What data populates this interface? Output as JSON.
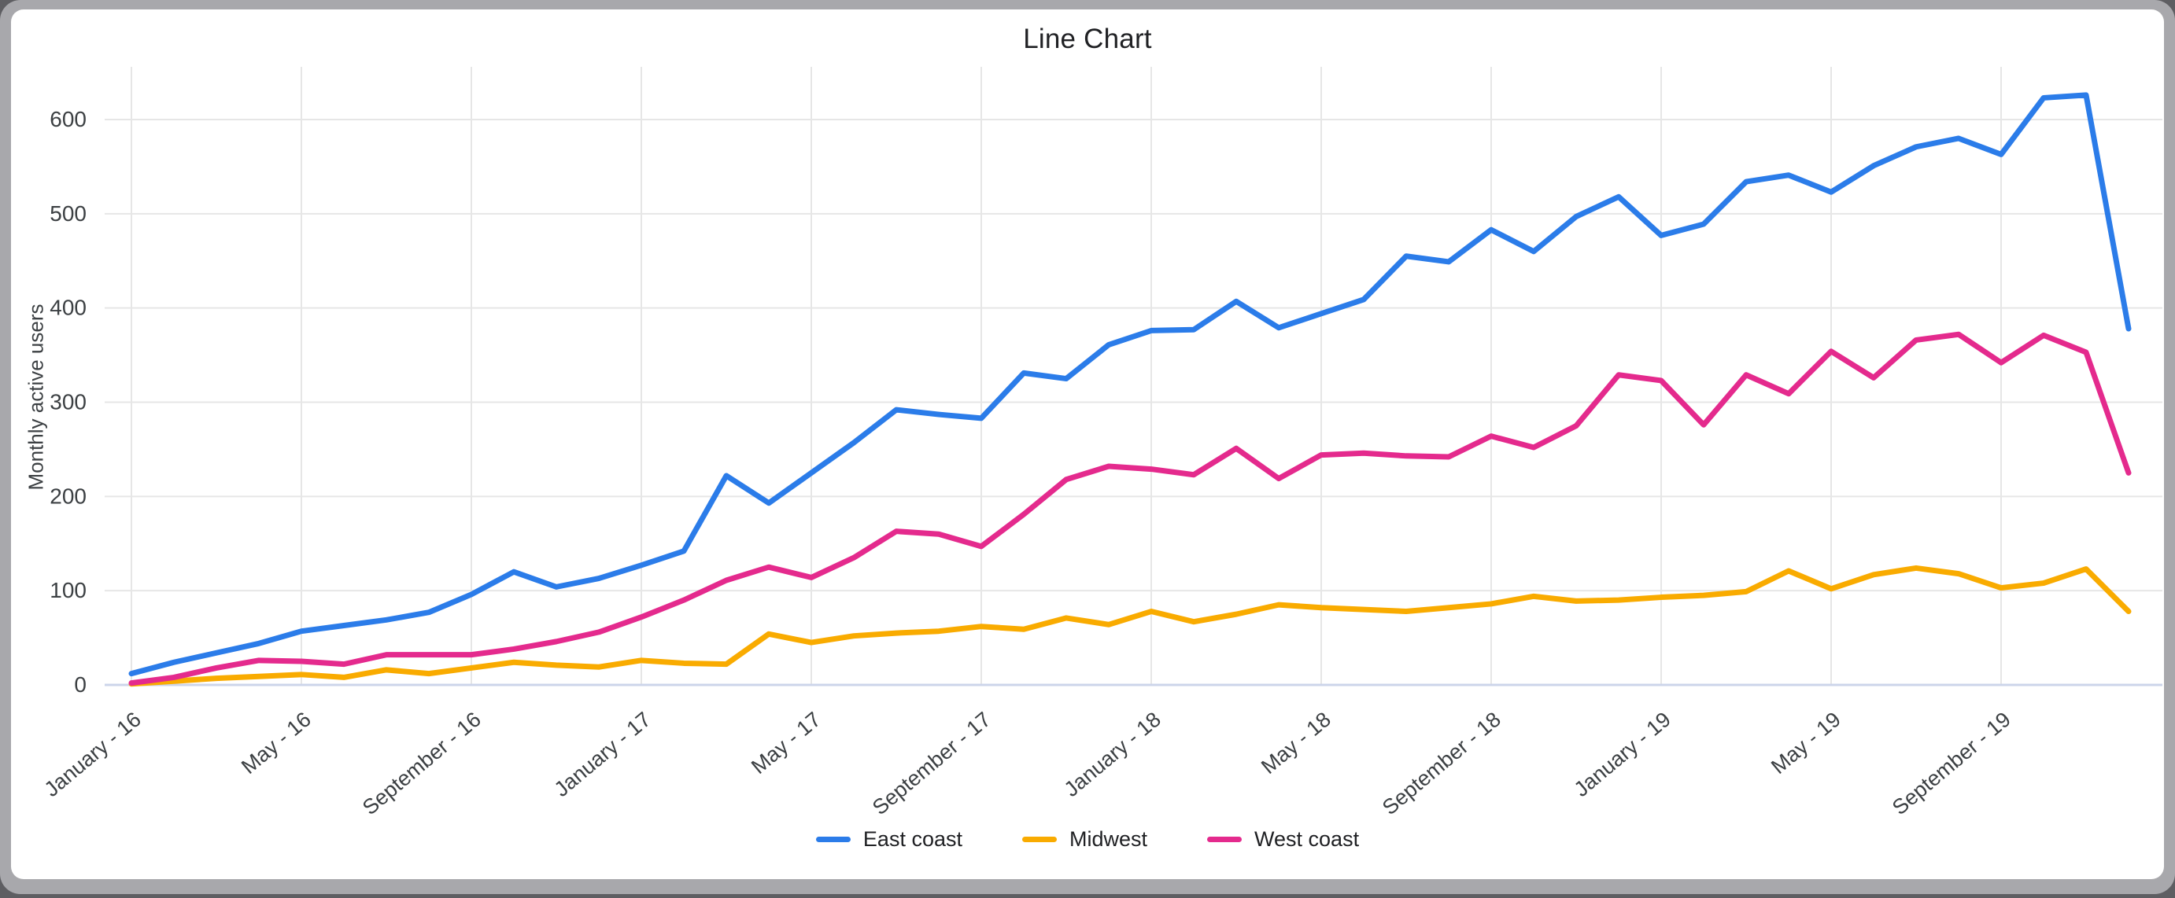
{
  "title": "Line Chart",
  "colors": {
    "frame_border": "#a8a8ac",
    "frame_outer": "#5e5e62",
    "card_bg": "#ffffff",
    "title_text": "#202124",
    "tick_text": "#3c4043",
    "gridline": "#e6e6e6",
    "zero_axis": "#ccd5ea",
    "legend_text": "#202124"
  },
  "chart_data": {
    "type": "line",
    "title": "Line Chart",
    "xlabel": "",
    "ylabel": "Monthly active users",
    "grid": true,
    "legend_position": "bottom",
    "ylim": [
      0,
      650
    ],
    "y_ticks": [
      0,
      100,
      200,
      300,
      400,
      500,
      600
    ],
    "x_range": {
      "start": "January 2016",
      "end": "December 2019",
      "interval": "monthly",
      "points": 48
    },
    "x_tick_months": [
      0,
      4,
      8,
      12,
      16,
      20,
      24,
      28,
      32,
      36,
      40,
      44
    ],
    "x_tick_labels": [
      "January - 16",
      "May - 16",
      "September - 16",
      "January - 17",
      "May - 17",
      "September - 17",
      "January - 18",
      "May - 18",
      "September - 18",
      "January - 19",
      "May - 19",
      "September - 19"
    ],
    "series": [
      {
        "name": "East coast",
        "color": "#2b7ce9",
        "values": [
          12,
          24,
          34,
          44,
          57,
          63,
          69,
          77,
          96,
          120,
          104,
          113,
          127,
          142,
          222,
          193,
          225,
          257,
          292,
          287,
          283,
          331,
          325,
          361,
          376,
          377,
          407,
          379,
          394,
          409,
          455,
          449,
          483,
          460,
          497,
          518,
          477,
          489,
          534,
          541,
          523,
          551,
          571,
          580,
          563,
          623,
          626,
          378
        ]
      },
      {
        "name": "Midwest",
        "color": "#f9ab00",
        "values": [
          1,
          4,
          7,
          9,
          11,
          8,
          16,
          12,
          18,
          24,
          21,
          19,
          26,
          23,
          22,
          54,
          45,
          52,
          55,
          57,
          62,
          59,
          71,
          64,
          78,
          67,
          75,
          85,
          82,
          80,
          78,
          82,
          86,
          94,
          89,
          90,
          93,
          95,
          99,
          121,
          102,
          117,
          124,
          118,
          103,
          108,
          123,
          78
        ]
      },
      {
        "name": "West coast",
        "color": "#e42a8d",
        "values": [
          2,
          8,
          18,
          26,
          25,
          22,
          32,
          32,
          32,
          38,
          46,
          56,
          72,
          90,
          111,
          125,
          114,
          135,
          163,
          160,
          147,
          181,
          218,
          232,
          229,
          223,
          251,
          219,
          244,
          246,
          243,
          242,
          264,
          252,
          275,
          329,
          323,
          276,
          329,
          309,
          354,
          326,
          366,
          372,
          342,
          371,
          353,
          225
        ]
      }
    ]
  }
}
